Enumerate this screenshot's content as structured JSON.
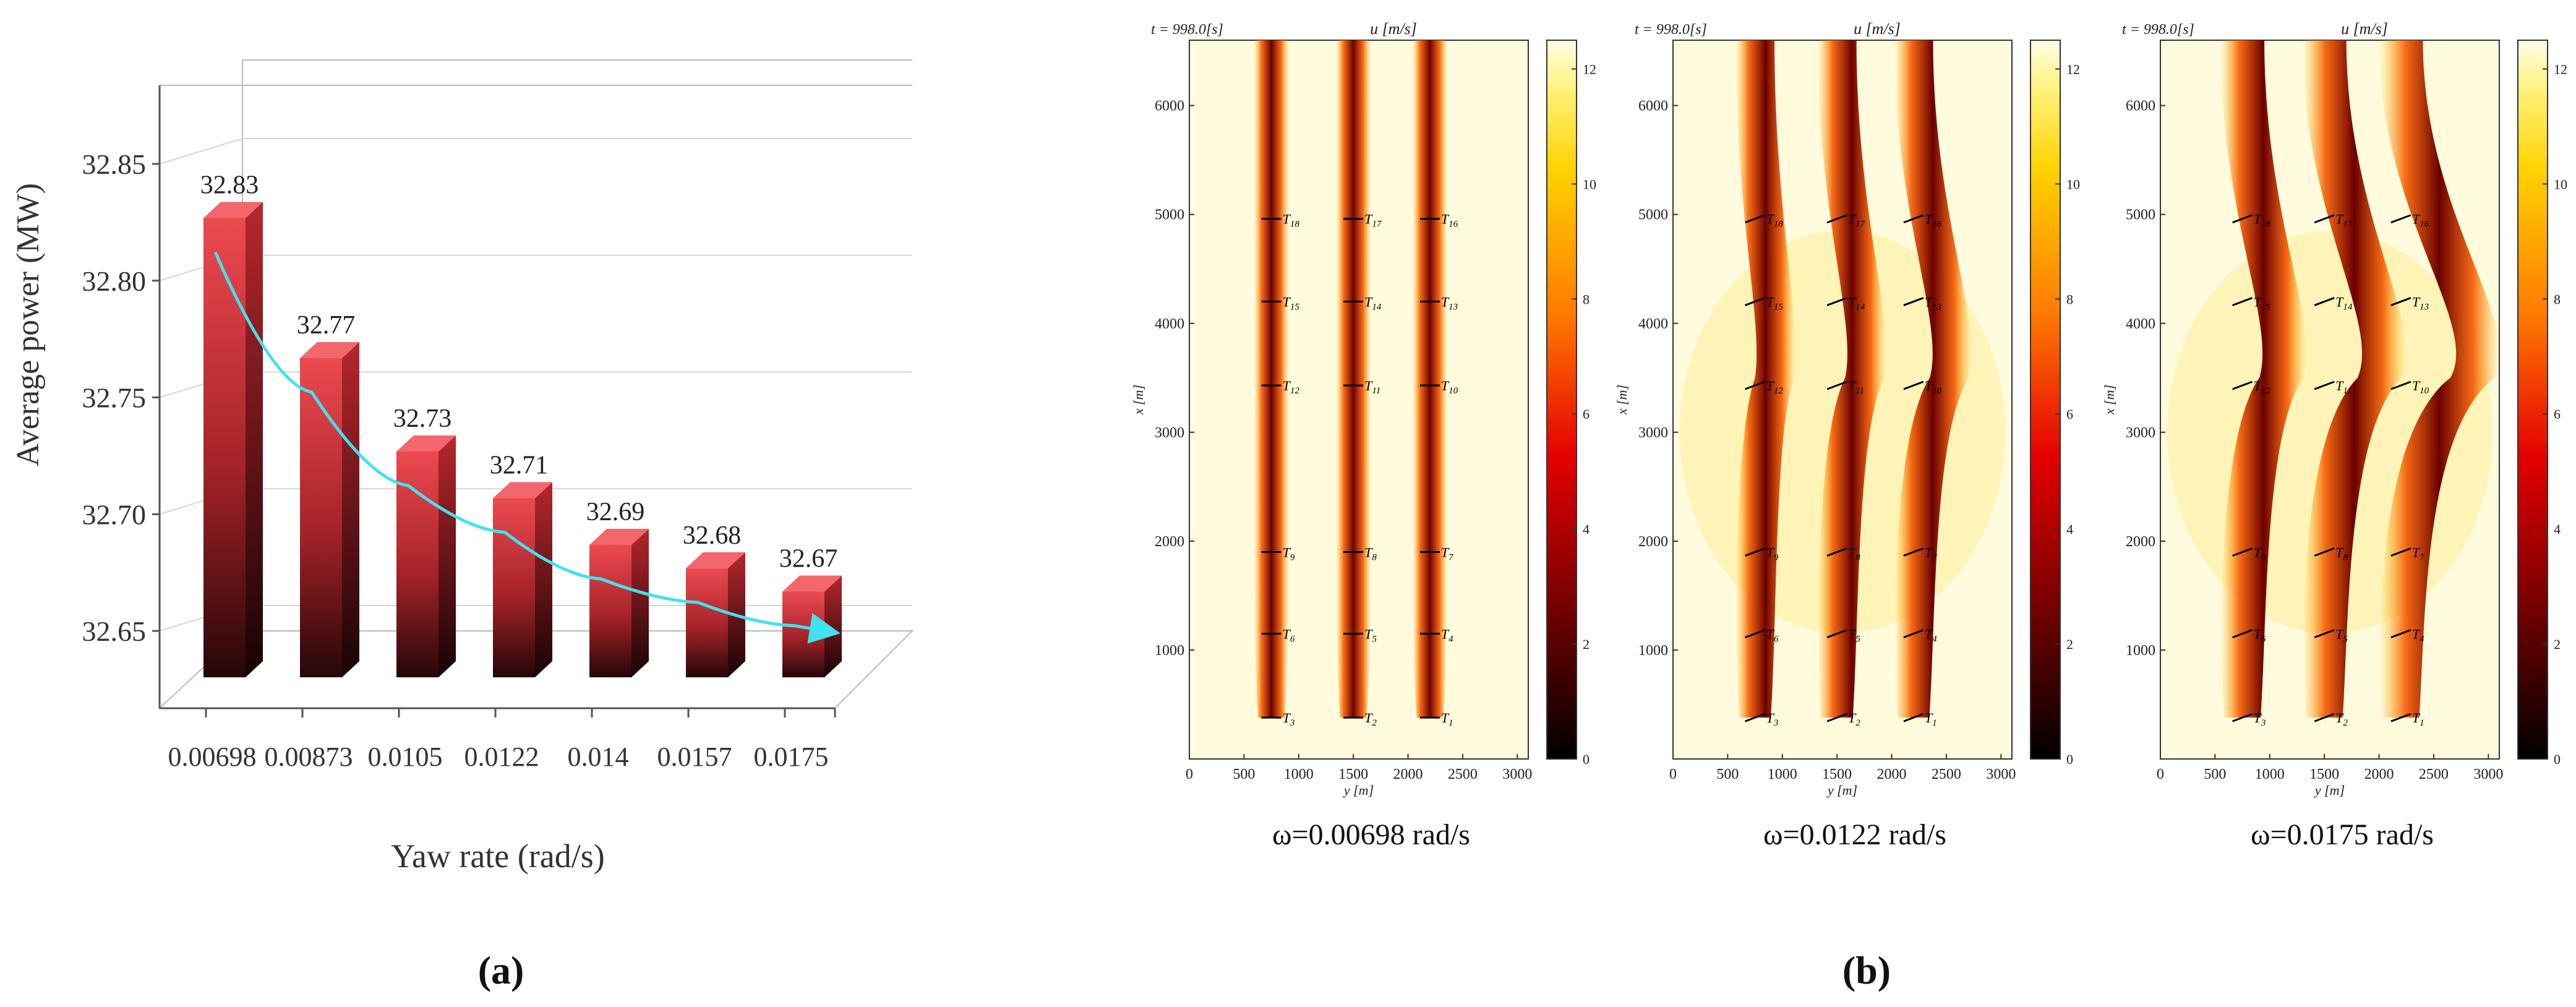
{
  "panel_a": {
    "label": "(a)",
    "ylabel": "Average power (MW)",
    "xlabel": "Yaw rate (rad/s)",
    "y_ticks": [
      "32.85",
      "32.80",
      "32.75",
      "32.70",
      "32.65"
    ],
    "colors": {
      "bar_top": "#e8434a",
      "bar_bottom": "#2a0a0c",
      "trend": "#3fe3ef",
      "frame": "#b9b9b9"
    }
  },
  "panel_b": {
    "label": "(b)",
    "time_label": "t =   998.0[s]",
    "title": "u [m/s]",
    "xlabel": "y [m]",
    "ylabel": "x [m]",
    "x_ticks": [
      "0",
      "500",
      "1000",
      "1500",
      "2000",
      "2500",
      "3000"
    ],
    "y_ticks": [
      "1000",
      "2000",
      "3000",
      "4000",
      "5000",
      "6000"
    ],
    "colorbar_ticks": [
      "0",
      "2",
      "4",
      "6",
      "8",
      "10",
      "12"
    ],
    "captions": [
      "ω=0.00698 rad/s",
      "ω=0.0122 rad/s",
      "ω=0.0175 rad/s"
    ],
    "turbines": [
      "T18",
      "T17",
      "T16",
      "T15",
      "T14",
      "T13",
      "T12",
      "T11",
      "T10",
      "T9",
      "T8",
      "T7",
      "T6",
      "T5",
      "T4",
      "T3",
      "T2",
      "T1"
    ]
  },
  "chart_data": [
    {
      "type": "bar",
      "title": "",
      "xlabel": "Yaw rate (rad/s)",
      "ylabel": "Average power (MW)",
      "categories": [
        "0.00698",
        "0.00873",
        "0.0105",
        "0.0122",
        "0.014",
        "0.0157",
        "0.0175"
      ],
      "values": [
        32.83,
        32.77,
        32.73,
        32.71,
        32.69,
        32.68,
        32.67
      ],
      "data_labels": [
        "32.83",
        "32.77",
        "32.73",
        "32.71",
        "32.69",
        "32.68",
        "32.67"
      ],
      "ylim": [
        32.63,
        32.86
      ],
      "grid": true,
      "trend_arrow": true
    },
    {
      "type": "heatmap",
      "title": "u [m/s]",
      "subtitle": "ω=0.00698 rad/s",
      "xlabel": "y [m]",
      "ylabel": "x [m]",
      "xlim": [
        0,
        3100
      ],
      "ylim": [
        0,
        6600
      ],
      "colorbar_range": [
        0,
        12.5
      ],
      "wake_columns_y": [
        750,
        1500,
        2200
      ],
      "turbine_rows_x": [
        380,
        1150,
        1900,
        3430,
        4200,
        4960
      ]
    },
    {
      "type": "heatmap",
      "title": "u [m/s]",
      "subtitle": "ω=0.0122 rad/s",
      "xlabel": "y [m]",
      "ylabel": "x [m]",
      "xlim": [
        0,
        3100
      ],
      "ylim": [
        0,
        6600
      ],
      "colorbar_range": [
        0,
        12.5
      ],
      "wake_columns_y": [
        750,
        1500,
        2200
      ],
      "turbine_rows_x": [
        380,
        1150,
        1900,
        3430,
        4200,
        4960
      ]
    },
    {
      "type": "heatmap",
      "title": "u [m/s]",
      "subtitle": "ω=0.0175 rad/s",
      "xlabel": "y [m]",
      "ylabel": "x [m]",
      "xlim": [
        0,
        3100
      ],
      "ylim": [
        0,
        6600
      ],
      "colorbar_range": [
        0,
        12.5
      ],
      "wake_columns_y": [
        750,
        1500,
        2200
      ],
      "turbine_rows_x": [
        380,
        1150,
        1900,
        3430,
        4200,
        4960
      ]
    }
  ]
}
